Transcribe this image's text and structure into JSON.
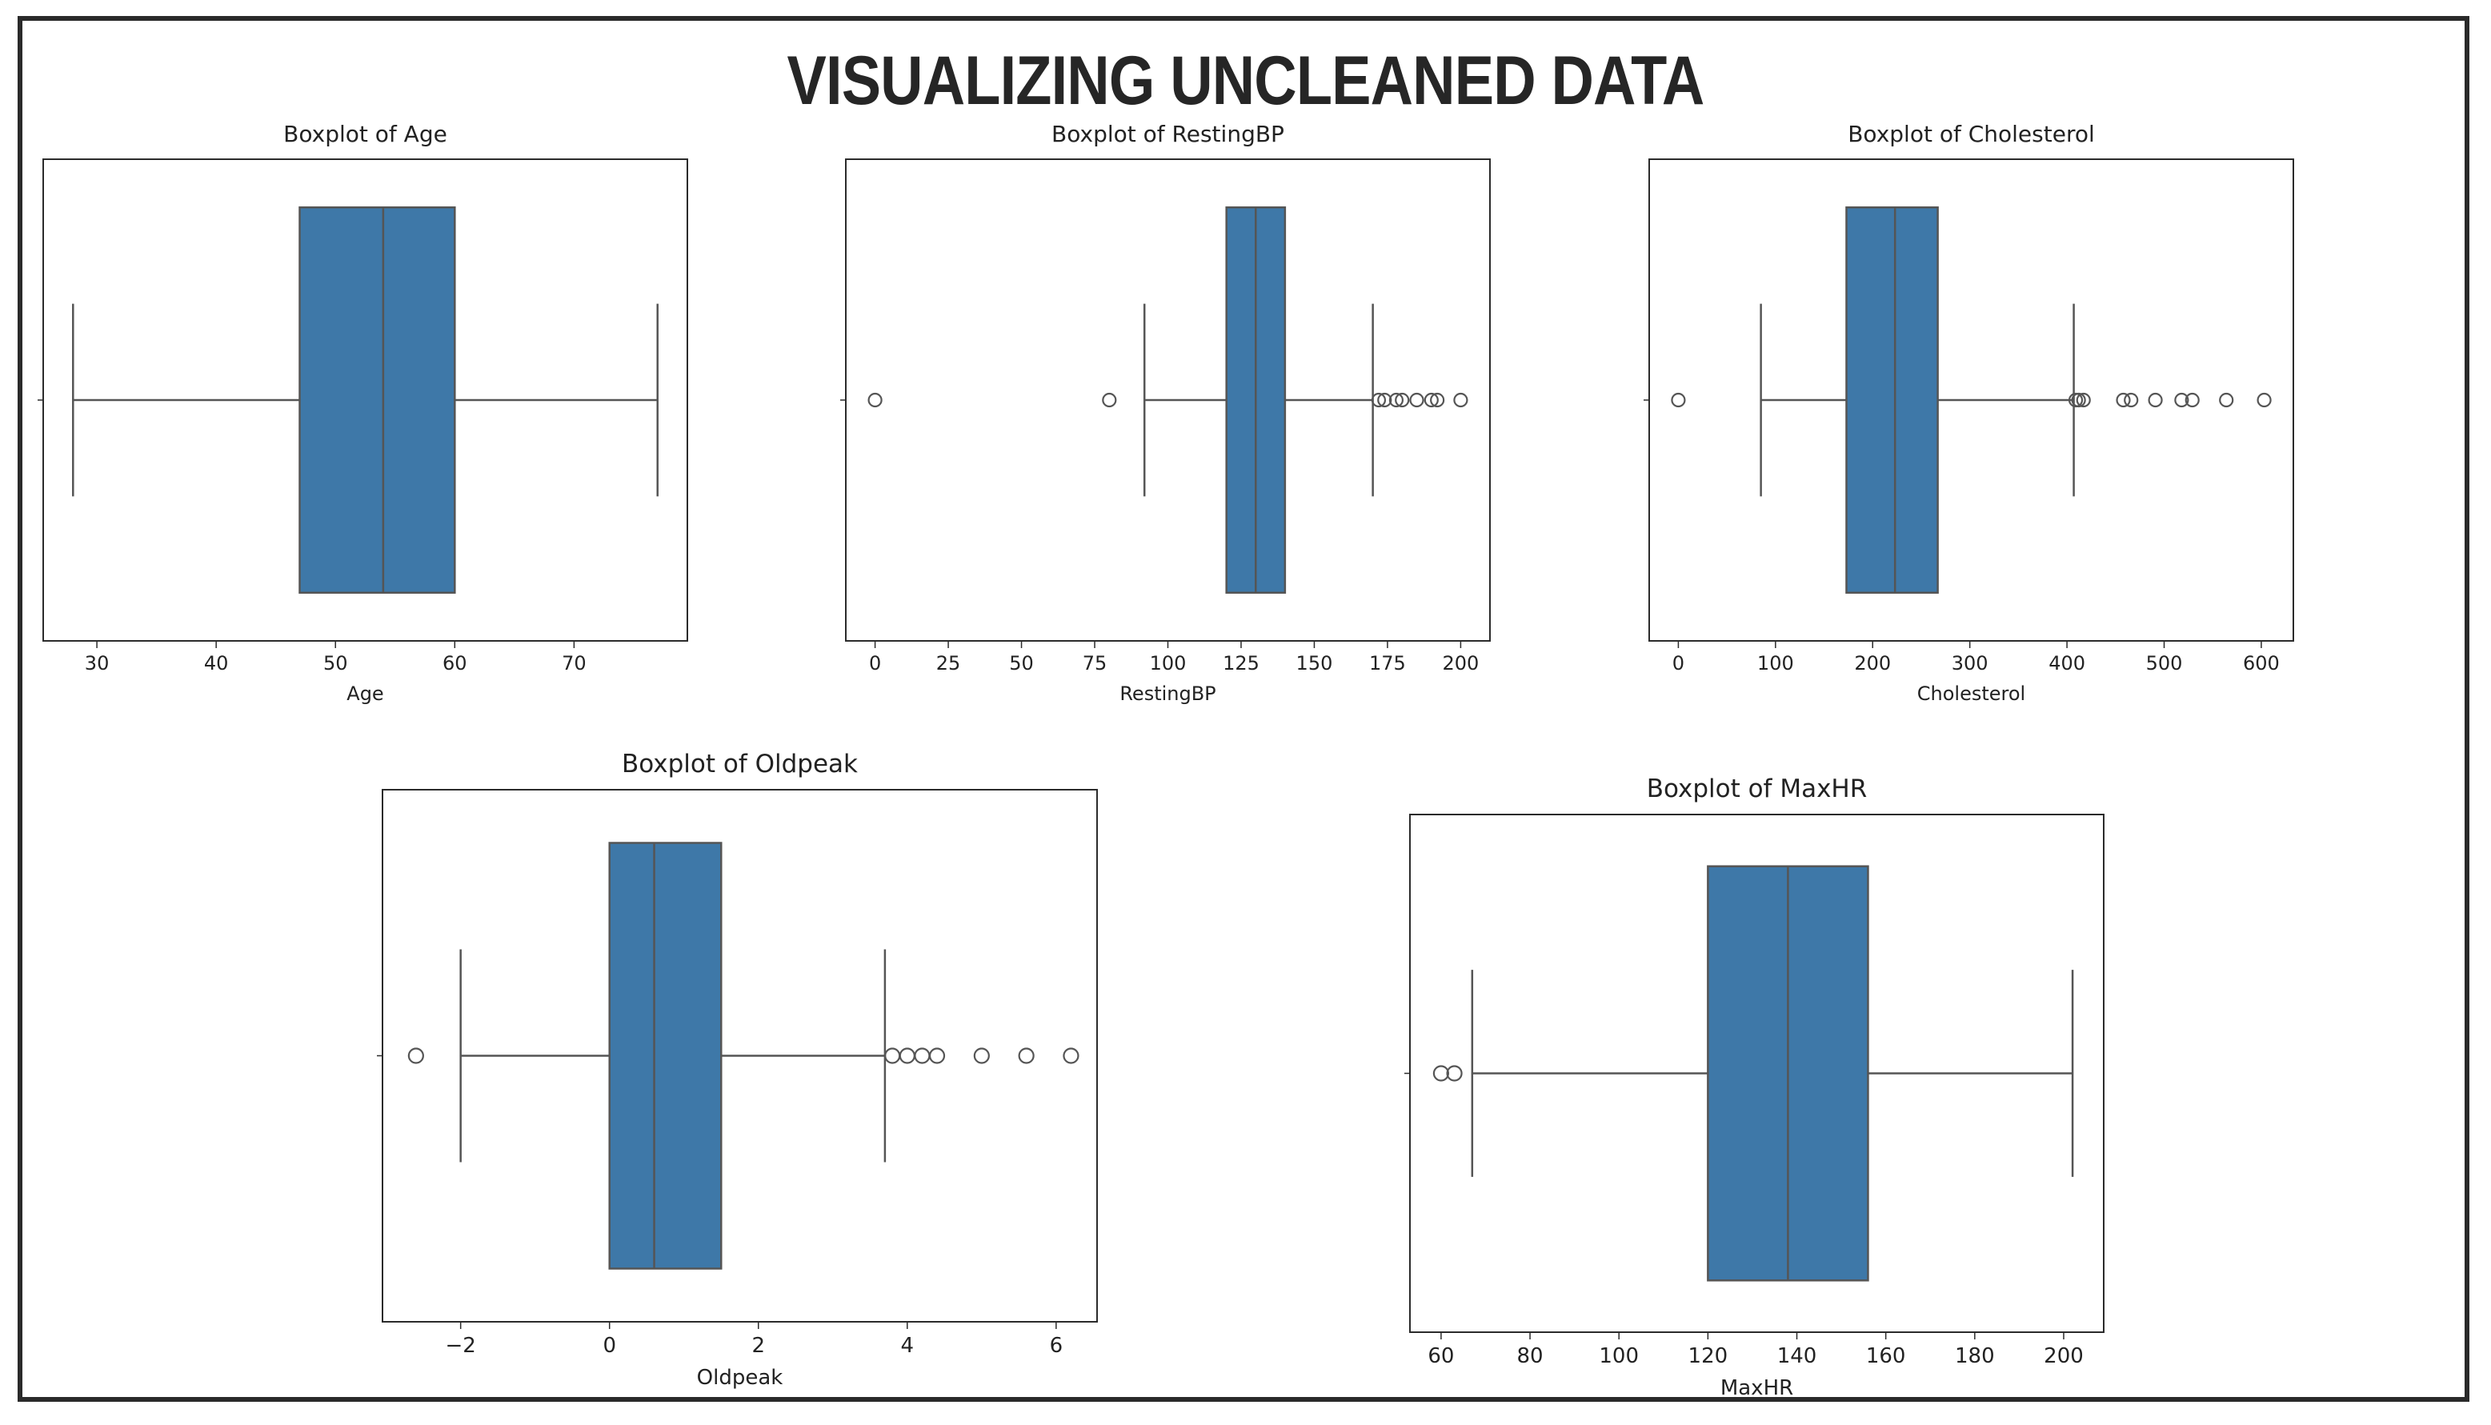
{
  "page": {
    "title": "VISUALIZING UNCLEANED DATA"
  },
  "colors": {
    "box": "#3e78a8",
    "line": "#555555",
    "axis": "#2b2b2b",
    "text": "#222222"
  },
  "chart_data": [
    {
      "type": "box",
      "title": "Boxplot of Age",
      "xlabel": "Age",
      "xlim": [
        25.5,
        79.5
      ],
      "ticks": [
        30,
        40,
        50,
        60,
        70
      ],
      "tick_labels": [
        "30",
        "40",
        "50",
        "60",
        "70"
      ],
      "stats": {
        "whisker_low": 28,
        "q1": 47,
        "median": 54,
        "q3": 60,
        "whisker_high": 77
      },
      "outliers": []
    },
    {
      "type": "box",
      "title": "Boxplot of RestingBP",
      "xlabel": "RestingBP",
      "xlim": [
        -10,
        210
      ],
      "ticks": [
        0,
        25,
        50,
        75,
        100,
        125,
        150,
        175,
        200
      ],
      "tick_labels": [
        "0",
        "25",
        "50",
        "75",
        "100",
        "125",
        "150",
        "175",
        "200"
      ],
      "stats": {
        "whisker_low": 92,
        "q1": 120,
        "median": 130,
        "q3": 140,
        "whisker_high": 170
      },
      "outliers": [
        0,
        80,
        172,
        174,
        178,
        180,
        185,
        190,
        192,
        200
      ]
    },
    {
      "type": "box",
      "title": "Boxplot of Cholesterol",
      "xlabel": "Cholesterol",
      "xlim": [
        -30,
        633
      ],
      "ticks": [
        0,
        100,
        200,
        300,
        400,
        500,
        600
      ],
      "tick_labels": [
        "0",
        "100",
        "200",
        "300",
        "400",
        "500",
        "600"
      ],
      "stats": {
        "whisker_low": 85,
        "q1": 173,
        "median": 223,
        "q3": 267,
        "whisker_high": 407
      },
      "outliers": [
        0,
        409,
        412,
        417,
        458,
        466,
        491,
        518,
        529,
        564,
        603
      ]
    },
    {
      "type": "box",
      "title": "Boxplot of Oldpeak",
      "xlabel": "Oldpeak",
      "xlim": [
        -3.05,
        6.55
      ],
      "ticks": [
        -2,
        0,
        2,
        4,
        6
      ],
      "tick_labels": [
        "−2",
        "0",
        "2",
        "4",
        "6"
      ],
      "stats": {
        "whisker_low": -2.0,
        "q1": 0.0,
        "median": 0.6,
        "q3": 1.5,
        "whisker_high": 3.7
      },
      "outliers": [
        -2.6,
        3.8,
        4.0,
        4.2,
        4.4,
        5.0,
        5.6,
        6.2
      ]
    },
    {
      "type": "box",
      "title": "Boxplot of MaxHR",
      "xlabel": "MaxHR",
      "xlim": [
        53,
        209
      ],
      "ticks": [
        60,
        80,
        100,
        120,
        140,
        160,
        180,
        200
      ],
      "tick_labels": [
        "60",
        "80",
        "100",
        "120",
        "140",
        "160",
        "180",
        "200"
      ],
      "stats": {
        "whisker_low": 67,
        "q1": 120,
        "median": 138,
        "q3": 156,
        "whisker_high": 202
      },
      "outliers": [
        60,
        63
      ]
    }
  ]
}
